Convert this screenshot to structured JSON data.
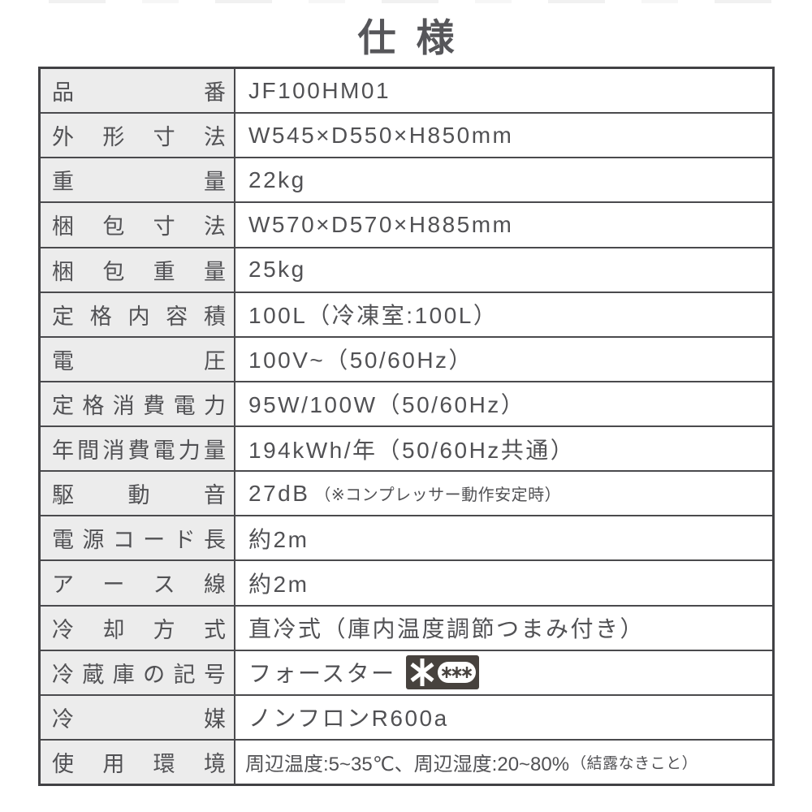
{
  "title": "仕 様",
  "table": {
    "rows": [
      {
        "label": "品番",
        "value": "JF100HM01"
      },
      {
        "label": "外形寸法",
        "value": "W545×D550×H850mm"
      },
      {
        "label": "重量",
        "value": "22kg"
      },
      {
        "label": "梱包寸法",
        "value": "W570×D570×H885mm"
      },
      {
        "label": "梱包重量",
        "value": "25kg"
      },
      {
        "label": "定格内容積",
        "value": "100L（冷凍室:100L）"
      },
      {
        "label": "電圧",
        "value": "100V~（50/60Hz）"
      },
      {
        "label": "定格消費電力",
        "value": "95W/100W（50/60Hz）"
      },
      {
        "label": "年間消費電力量",
        "value": "194kWh/年（50/60Hz共通）"
      },
      {
        "label": "駆動音",
        "value": "27dB",
        "note": "（※コンプレッサー動作安定時）"
      },
      {
        "label": "電源コード長",
        "value": "約2m"
      },
      {
        "label": "アース線",
        "value": "約2m"
      },
      {
        "label": "冷却方式",
        "value": "直冷式（庫内温度調節つまみ付き）"
      },
      {
        "label": "冷蔵庫の記号",
        "value": "フォースター",
        "badge": "four-star-freezer-mark"
      },
      {
        "label": "冷媒",
        "value": "ノンフロンR600a"
      },
      {
        "label": "使用環境",
        "value": "周辺温度:5~35℃、周辺湿度:20~80%",
        "note": "（結露なきこと）"
      }
    ]
  },
  "badge": {
    "name": "four-star-freezer-mark",
    "stars_outside_oval": 1,
    "stars_inside_oval": 3
  },
  "colors": {
    "text": "#515154",
    "label_background": "#ececec",
    "border": "#4a4a4d",
    "badge_background": "#47423e",
    "badge_star": "#ffffff"
  }
}
